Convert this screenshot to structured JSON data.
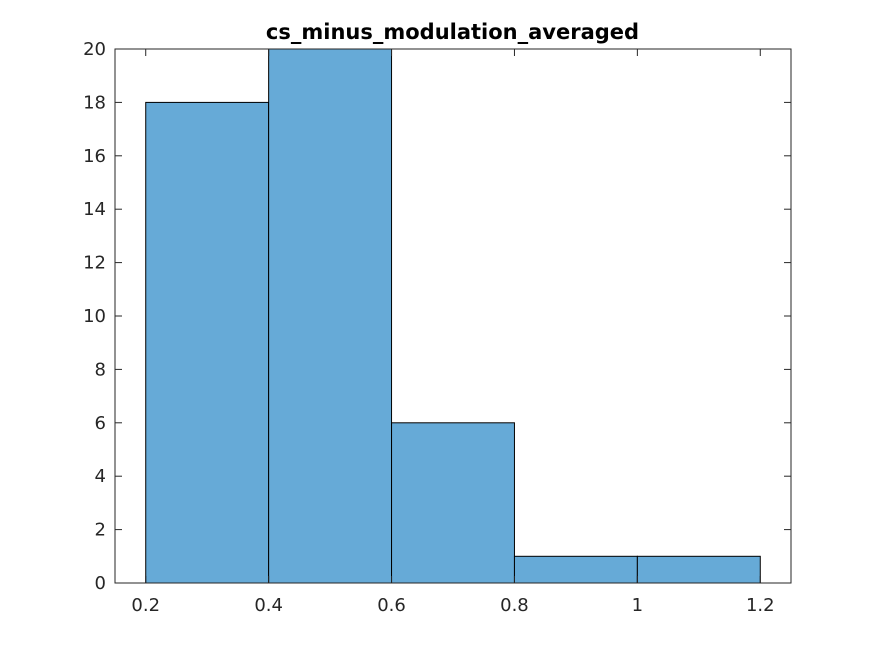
{
  "chart_data": {
    "type": "bar",
    "title": "cs_minus_modulation_averaged",
    "xlabel": "",
    "ylabel": "",
    "bin_edges": [
      0.2,
      0.4,
      0.6,
      0.8,
      1.0,
      1.2
    ],
    "values": [
      18,
      20,
      6,
      1,
      1
    ],
    "xlim": [
      0.15,
      1.25
    ],
    "ylim": [
      0,
      20
    ],
    "xticks": [
      0.2,
      0.4,
      0.6,
      0.8,
      1.0,
      1.2
    ],
    "xtick_labels": [
      "0.2",
      "0.4",
      "0.6",
      "0.8",
      "1",
      "1.2"
    ],
    "yticks": [
      0,
      2,
      4,
      6,
      8,
      10,
      12,
      14,
      16,
      18,
      20
    ],
    "ytick_labels": [
      "0",
      "2",
      "4",
      "6",
      "8",
      "10",
      "12",
      "14",
      "16",
      "18",
      "20"
    ],
    "grid": false,
    "box": true,
    "bar_color": "#66aad7",
    "edge_color": "#000000",
    "axis_color": "#262626"
  }
}
